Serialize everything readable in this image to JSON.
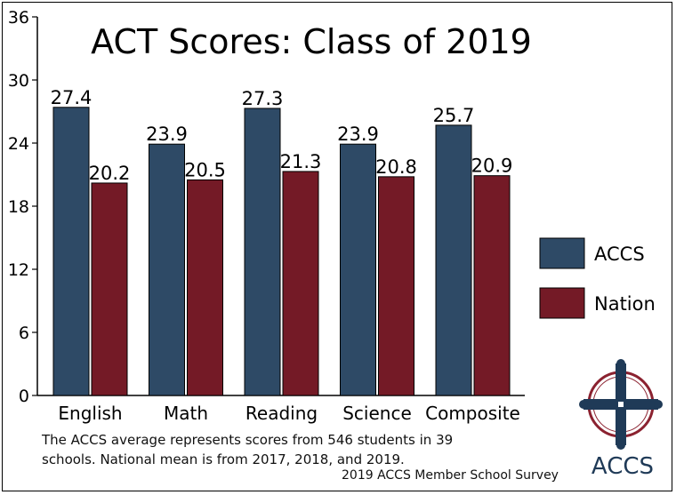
{
  "chart_data": {
    "type": "bar",
    "title": "ACT Scores: Class of 2019",
    "categories": [
      "English",
      "Math",
      "Reading",
      "Science",
      "Composite"
    ],
    "series": [
      {
        "name": "ACCS",
        "values": [
          27.4,
          23.9,
          27.3,
          23.9,
          25.7
        ],
        "color": "#2e4a66"
      },
      {
        "name": "Nation",
        "values": [
          20.2,
          20.5,
          21.3,
          20.8,
          20.9
        ],
        "color": "#741a26"
      }
    ],
    "yticks": [
      0,
      6,
      12,
      18,
      24,
      30,
      36
    ],
    "ylim": [
      0,
      36
    ],
    "grid": false,
    "legend_position": "right"
  },
  "footnote": "The ACCS average represents scores from 546 students in 39 schools. National mean is from 2017, 2018, and 2019.",
  "survey_label": "2019 ACCS Member School Survey",
  "logo": {
    "text": "ACCS",
    "icon": "cross-logo-icon"
  }
}
